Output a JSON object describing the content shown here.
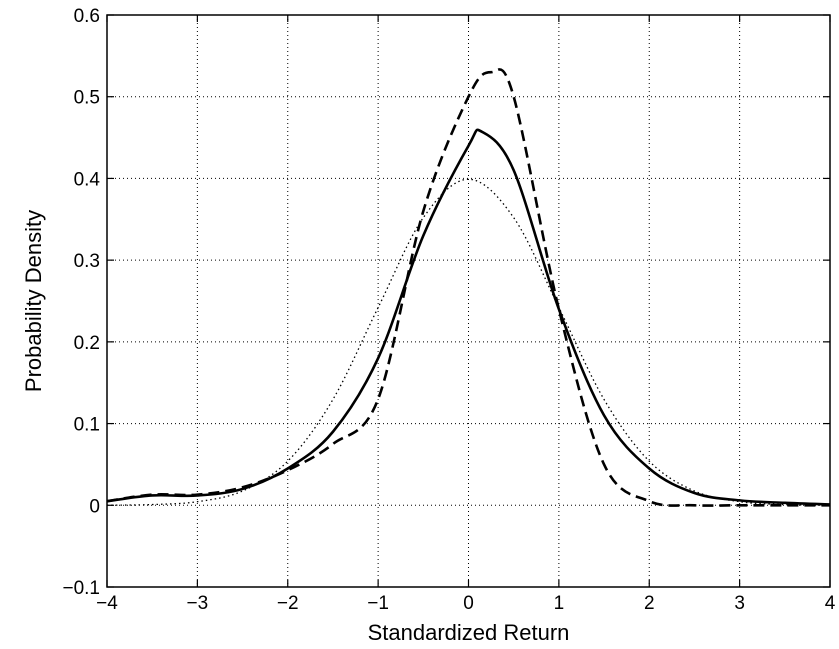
{
  "chart_data": {
    "type": "line",
    "title": "",
    "xlabel": "Standardized Return",
    "ylabel": "Probability Density",
    "xlim": [
      -4,
      4
    ],
    "ylim": [
      -0.1,
      0.6
    ],
    "xticks": [
      -4,
      -3,
      -2,
      -1,
      0,
      1,
      2,
      3,
      4
    ],
    "xtick_labels": [
      "−4",
      "−3",
      "−2",
      "−1",
      "0",
      "1",
      "2",
      "3",
      "4"
    ],
    "yticks": [
      -0.1,
      0,
      0.1,
      0.2,
      0.3,
      0.4,
      0.5,
      0.6
    ],
    "ytick_labels": [
      "−0.1",
      "0",
      "0.1",
      "0.2",
      "0.3",
      "0.4",
      "0.5",
      "0.6"
    ],
    "grid": true,
    "legend": "none",
    "series": [
      {
        "style": "solid",
        "color": "#000000",
        "x": [
          -4,
          -3.5,
          -3,
          -2.5,
          -2,
          -1.5,
          -1,
          -0.5,
          0,
          0.15,
          0.5,
          1,
          1.5,
          2,
          2.5,
          3,
          3.5,
          4
        ],
        "y": [
          0.005,
          0.012,
          0.012,
          0.02,
          0.045,
          0.09,
          0.18,
          0.33,
          0.44,
          0.457,
          0.41,
          0.24,
          0.11,
          0.045,
          0.015,
          0.006,
          0.003,
          0.001
        ]
      },
      {
        "style": "dashed",
        "color": "#000000",
        "x": [
          -4,
          -3.5,
          -3,
          -2.5,
          -2,
          -1.5,
          -1,
          -0.5,
          0,
          0.25,
          0.5,
          1,
          1.5,
          2,
          2.5,
          3,
          3.5,
          4
        ],
        "y": [
          0.005,
          0.013,
          0.013,
          0.022,
          0.043,
          0.075,
          0.13,
          0.36,
          0.5,
          0.53,
          0.5,
          0.24,
          0.05,
          0.005,
          0,
          0,
          0,
          0
        ]
      },
      {
        "style": "dotted",
        "color": "#000000",
        "x": [
          -4,
          -3.5,
          -3,
          -2.5,
          -2,
          -1.5,
          -1,
          -0.5,
          0,
          0.5,
          1,
          1.5,
          2,
          2.5,
          3,
          3.5,
          4
        ],
        "y": [
          0.0001,
          0.0009,
          0.0044,
          0.0175,
          0.054,
          0.1295,
          0.242,
          0.352,
          0.399,
          0.352,
          0.242,
          0.1295,
          0.054,
          0.0175,
          0.0044,
          0.0009,
          0.0001
        ]
      }
    ]
  }
}
